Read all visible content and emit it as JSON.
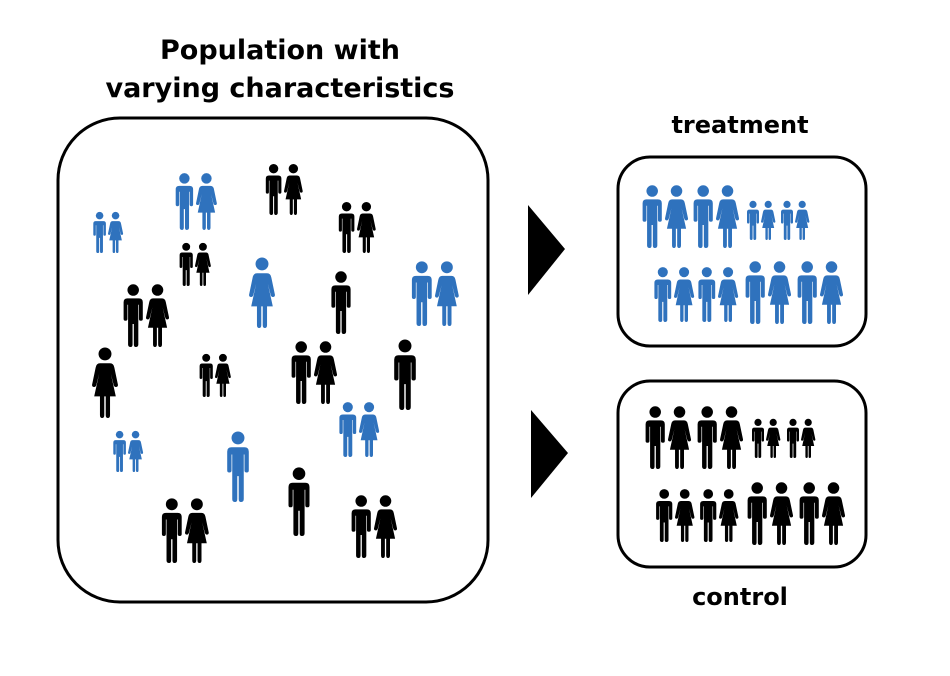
{
  "population": {
    "title_line1": "Population with",
    "title_line2": "varying characteristics"
  },
  "treatment": {
    "label": "treatment"
  },
  "control": {
    "label": "control"
  },
  "colors": {
    "blue": "#2f72bd",
    "black": "#000000"
  },
  "icons": {
    "man": "man-icon",
    "woman": "woman-icon",
    "couple": "couple-icon",
    "arrow": "right-arrow-icon"
  }
}
